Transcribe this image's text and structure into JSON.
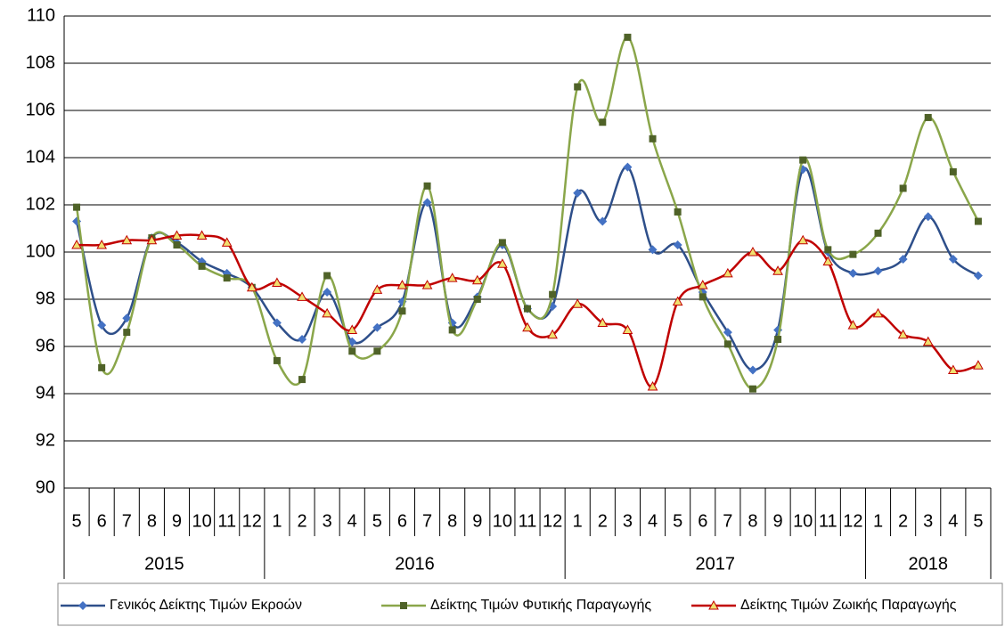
{
  "chart_data": {
    "type": "line",
    "categories": [
      "5",
      "6",
      "7",
      "8",
      "9",
      "10",
      "11",
      "12",
      "1",
      "2",
      "3",
      "4",
      "5",
      "6",
      "7",
      "8",
      "9",
      "10",
      "11",
      "12",
      "1",
      "2",
      "3",
      "4",
      "5",
      "6",
      "7",
      "8",
      "9",
      "10",
      "11",
      "12",
      "1",
      "2",
      "3",
      "4",
      "5"
    ],
    "category_groups": [
      "2015",
      "2016",
      "2017",
      "2018"
    ],
    "ylim": [
      90,
      110
    ],
    "yticks": [
      90,
      92,
      94,
      96,
      98,
      100,
      102,
      104,
      106,
      108,
      110
    ],
    "grid": true,
    "legend": "bottom",
    "smooth": true,
    "series": [
      {
        "name": "Γενικός Δείκτης Τιμών Εκροών",
        "color": "#2e4f8a",
        "marker": "diamond",
        "marker_color": "#4472c4",
        "values": [
          101.3,
          96.9,
          97.2,
          100.6,
          100.4,
          99.6,
          99.1,
          98.5,
          97.0,
          96.3,
          98.3,
          96.2,
          96.8,
          97.9,
          102.1,
          97.0,
          98.1,
          100.3,
          97.6,
          97.7,
          102.5,
          101.3,
          103.6,
          100.1,
          100.3,
          98.3,
          96.6,
          95.0,
          96.7,
          103.5,
          100.0,
          99.1,
          99.2,
          99.7,
          101.5,
          99.7,
          99.0
        ]
      },
      {
        "name": "Δείκτης Τιμών Φυτικής Παραγωγής",
        "color": "#8aa64a",
        "marker": "square",
        "marker_color": "#4f6228",
        "values": [
          101.9,
          95.1,
          96.6,
          100.6,
          100.3,
          99.4,
          98.9,
          98.5,
          95.4,
          94.6,
          99.0,
          95.8,
          95.8,
          97.5,
          102.8,
          96.7,
          98.0,
          100.4,
          97.6,
          98.2,
          107.0,
          105.5,
          109.1,
          104.8,
          101.7,
          98.1,
          96.1,
          94.2,
          96.3,
          103.9,
          100.1,
          99.9,
          100.8,
          102.7,
          105.7,
          103.4,
          101.3
        ]
      },
      {
        "name": "Δείκτης Τιμών Ζωικής Παραγωγής",
        "color": "#c00000",
        "marker": "triangle",
        "marker_color": "#f0e070",
        "values": [
          100.3,
          100.3,
          100.5,
          100.5,
          100.7,
          100.7,
          100.4,
          98.5,
          98.7,
          98.1,
          97.4,
          96.7,
          98.4,
          98.6,
          98.6,
          98.9,
          98.8,
          99.5,
          96.8,
          96.5,
          97.8,
          97.0,
          96.7,
          94.3,
          97.9,
          98.6,
          99.1,
          100.0,
          99.2,
          100.5,
          99.6,
          96.9,
          97.4,
          96.5,
          96.2,
          95.0,
          95.2
        ]
      }
    ]
  }
}
